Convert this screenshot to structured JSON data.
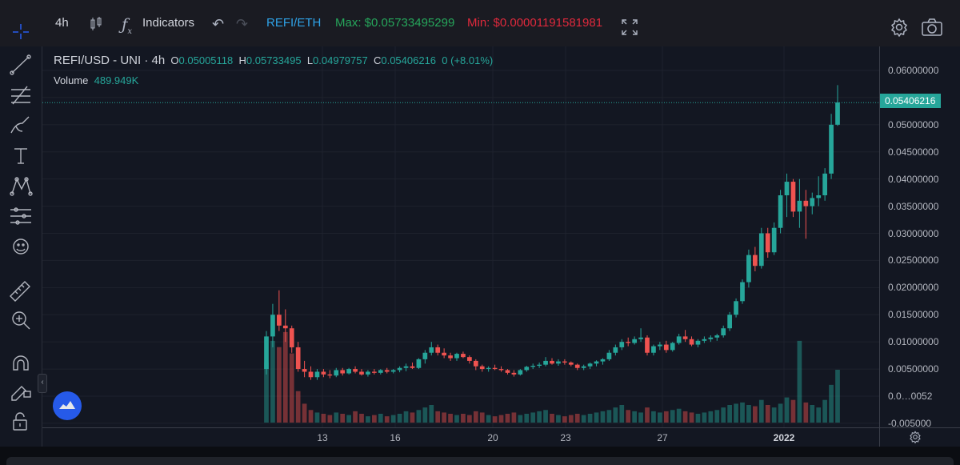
{
  "toolbar": {
    "interval": "4h",
    "indicators_label": "Indicators",
    "pair": "REFI/ETH",
    "max_label": "Max: $0.05733495299",
    "min_label": "Min: $0.00001191581981"
  },
  "legend": {
    "symbol": "REFI/USD - UNI · 4h",
    "o_label": "O",
    "o_value": "0.05005118",
    "h_label": "H",
    "h_value": "0.05733495",
    "l_label": "L",
    "l_value": "0.04979757",
    "c_label": "C",
    "c_value": "0.05406216",
    "change": "0 (+8.01%)",
    "volume_label": "Volume",
    "volume_value": "489.949K"
  },
  "price_axis": {
    "ticks": [
      "0.06000000",
      "0.05500000",
      "0.05000000",
      "0.04500000",
      "0.04000000",
      "0.03500000",
      "0.03000000",
      "0.02500000",
      "0.02000000",
      "0.01500000",
      "0.01000000",
      "0.00500000",
      "0.0…0052",
      "-0.005000"
    ],
    "last_price": "0.05406216"
  },
  "time_axis": {
    "labels": [
      "13",
      "16",
      "20",
      "23",
      "27",
      "2022"
    ]
  },
  "colors": {
    "up": "#26a69a",
    "down": "#ef5350",
    "background": "#131722",
    "grid": "#1e222d"
  },
  "chart_data": {
    "type": "candlestick",
    "symbol": "REFI/USD - UNI",
    "interval": "4h",
    "y_range": [
      -0.005,
      0.063
    ],
    "x_ticks": [
      "13",
      "16",
      "20",
      "23",
      "27",
      "2022"
    ],
    "series": [
      {
        "values": [
          [
            0.005,
            0.012,
            0.004,
            0.011
          ],
          [
            0.011,
            0.017,
            0.009,
            0.015
          ],
          [
            0.015,
            0.0195,
            0.012,
            0.013
          ],
          [
            0.013,
            0.016,
            0.01,
            0.0125
          ],
          [
            0.0125,
            0.013,
            0.008,
            0.009
          ],
          [
            0.009,
            0.01,
            0.0045,
            0.005
          ],
          [
            0.005,
            0.0065,
            0.0035,
            0.0045
          ],
          [
            0.0045,
            0.0055,
            0.003,
            0.0035
          ],
          [
            0.0035,
            0.005,
            0.003,
            0.0045
          ],
          [
            0.0045,
            0.005,
            0.0035,
            0.004
          ],
          [
            0.004,
            0.0048,
            0.0033,
            0.0038
          ],
          [
            0.0038,
            0.0052,
            0.0035,
            0.0048
          ],
          [
            0.0048,
            0.0052,
            0.0038,
            0.0042
          ],
          [
            0.0042,
            0.0052,
            0.004,
            0.005
          ],
          [
            0.005,
            0.0055,
            0.0042,
            0.0045
          ],
          [
            0.0045,
            0.005,
            0.0038,
            0.004
          ],
          [
            0.004,
            0.0048,
            0.0036,
            0.0045
          ],
          [
            0.0045,
            0.005,
            0.004,
            0.0043
          ],
          [
            0.0043,
            0.005,
            0.004,
            0.0048
          ],
          [
            0.0048,
            0.0052,
            0.0042,
            0.0045
          ],
          [
            0.0045,
            0.005,
            0.0042,
            0.0048
          ],
          [
            0.0048,
            0.0055,
            0.0044,
            0.0052
          ],
          [
            0.0052,
            0.006,
            0.0046,
            0.0055
          ],
          [
            0.0055,
            0.0062,
            0.005,
            0.0052
          ],
          [
            0.0052,
            0.007,
            0.005,
            0.0068
          ],
          [
            0.0068,
            0.0085,
            0.006,
            0.008
          ],
          [
            0.008,
            0.01,
            0.0075,
            0.009
          ],
          [
            0.009,
            0.0095,
            0.0075,
            0.008
          ],
          [
            0.008,
            0.0088,
            0.007,
            0.0075
          ],
          [
            0.0075,
            0.008,
            0.0065,
            0.007
          ],
          [
            0.007,
            0.008,
            0.0065,
            0.0078
          ],
          [
            0.0078,
            0.0082,
            0.007,
            0.0072
          ],
          [
            0.0072,
            0.0075,
            0.006,
            0.0065
          ],
          [
            0.0065,
            0.0068,
            0.0048,
            0.0055
          ],
          [
            0.0055,
            0.0058,
            0.0045,
            0.005
          ],
          [
            0.005,
            0.0055,
            0.0045,
            0.0052
          ],
          [
            0.0052,
            0.0058,
            0.0048,
            0.005
          ],
          [
            0.005,
            0.0055,
            0.0045,
            0.0048
          ],
          [
            0.0048,
            0.005,
            0.004,
            0.0043
          ],
          [
            0.0043,
            0.0048,
            0.0036,
            0.004
          ],
          [
            0.004,
            0.005,
            0.0038,
            0.0048
          ],
          [
            0.0048,
            0.0056,
            0.0045,
            0.0054
          ],
          [
            0.0054,
            0.006,
            0.005,
            0.0056
          ],
          [
            0.0056,
            0.0062,
            0.0052,
            0.0058
          ],
          [
            0.0058,
            0.0072,
            0.0055,
            0.0065
          ],
          [
            0.0065,
            0.007,
            0.0058,
            0.006
          ],
          [
            0.006,
            0.0068,
            0.0056,
            0.0064
          ],
          [
            0.0064,
            0.0068,
            0.0058,
            0.0062
          ],
          [
            0.0062,
            0.0064,
            0.0055,
            0.0058
          ],
          [
            0.0058,
            0.006,
            0.0048,
            0.0052
          ],
          [
            0.0052,
            0.0058,
            0.0048,
            0.0055
          ],
          [
            0.0055,
            0.0062,
            0.005,
            0.006
          ],
          [
            0.006,
            0.0066,
            0.0055,
            0.0064
          ],
          [
            0.0064,
            0.007,
            0.0058,
            0.0068
          ],
          [
            0.0068,
            0.0085,
            0.0065,
            0.008
          ],
          [
            0.008,
            0.0095,
            0.0075,
            0.009
          ],
          [
            0.009,
            0.0105,
            0.0085,
            0.01
          ],
          [
            0.01,
            0.0108,
            0.0092,
            0.0098
          ],
          [
            0.0098,
            0.011,
            0.0095,
            0.0105
          ],
          [
            0.0105,
            0.0125,
            0.01,
            0.0108
          ],
          [
            0.0108,
            0.0112,
            0.0075,
            0.008
          ],
          [
            0.008,
            0.0095,
            0.0075,
            0.0092
          ],
          [
            0.0092,
            0.01,
            0.0085,
            0.0095
          ],
          [
            0.0095,
            0.0102,
            0.008,
            0.0085
          ],
          [
            0.0085,
            0.01,
            0.0082,
            0.0098
          ],
          [
            0.0098,
            0.0115,
            0.0095,
            0.011
          ],
          [
            0.011,
            0.0122,
            0.01,
            0.0105
          ],
          [
            0.0105,
            0.011,
            0.0092,
            0.0095
          ],
          [
            0.0095,
            0.0105,
            0.009,
            0.0102
          ],
          [
            0.0102,
            0.011,
            0.0098,
            0.0105
          ],
          [
            0.0105,
            0.0112,
            0.01,
            0.0108
          ],
          [
            0.0108,
            0.0115,
            0.0102,
            0.0112
          ],
          [
            0.0112,
            0.013,
            0.0108,
            0.0125
          ],
          [
            0.0125,
            0.0155,
            0.012,
            0.015
          ],
          [
            0.015,
            0.018,
            0.0145,
            0.0175
          ],
          [
            0.0175,
            0.0215,
            0.017,
            0.021
          ],
          [
            0.021,
            0.027,
            0.02,
            0.026
          ],
          [
            0.026,
            0.0275,
            0.023,
            0.024
          ],
          [
            0.024,
            0.031,
            0.0235,
            0.03
          ],
          [
            0.03,
            0.031,
            0.0255,
            0.0265
          ],
          [
            0.0265,
            0.032,
            0.026,
            0.031
          ],
          [
            0.031,
            0.038,
            0.03,
            0.037
          ],
          [
            0.037,
            0.041,
            0.033,
            0.0395
          ],
          [
            0.0395,
            0.04,
            0.033,
            0.034
          ],
          [
            0.034,
            0.04,
            0.031,
            0.036
          ],
          [
            0.036,
            0.038,
            0.029,
            0.035
          ],
          [
            0.035,
            0.0375,
            0.0335,
            0.0365
          ],
          [
            0.0365,
            0.0405,
            0.035,
            0.037
          ],
          [
            0.037,
            0.042,
            0.036,
            0.041
          ],
          [
            0.041,
            0.052,
            0.04,
            0.05
          ],
          [
            0.05,
            0.0573,
            0.0498,
            0.0541
          ]
        ]
      }
    ],
    "volume": [
      48,
      65,
      60,
      72,
      55,
      25,
      15,
      10,
      8,
      7,
      6,
      8,
      7,
      6,
      9,
      7,
      5,
      6,
      7,
      5,
      6,
      7,
      9,
      8,
      10,
      12,
      14,
      9,
      8,
      7,
      6,
      7,
      6,
      9,
      8,
      6,
      5,
      6,
      7,
      8,
      6,
      7,
      8,
      9,
      10,
      7,
      6,
      5,
      6,
      7,
      6,
      7,
      8,
      9,
      10,
      12,
      14,
      10,
      9,
      8,
      12,
      9,
      8,
      9,
      10,
      11,
      9,
      8,
      7,
      8,
      9,
      10,
      12,
      14,
      15,
      16,
      14,
      13,
      18,
      14,
      12,
      15,
      20,
      18,
      65,
      16,
      14,
      12,
      18,
      30,
      42
    ]
  }
}
